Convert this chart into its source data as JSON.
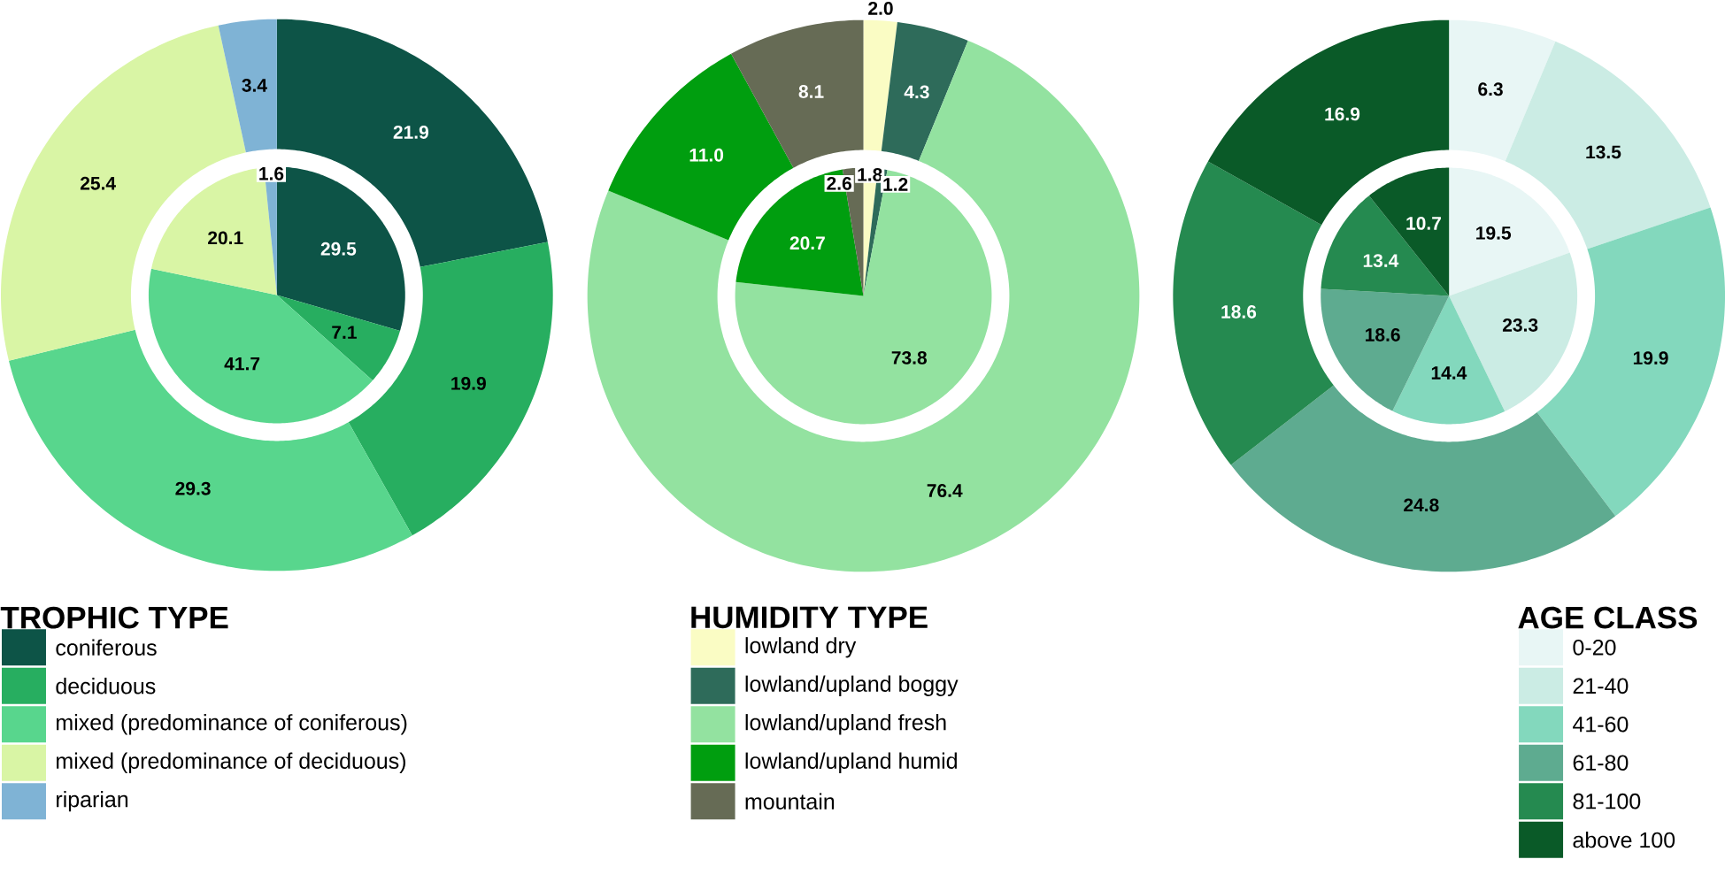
{
  "chart_data": [
    {
      "type": "donut",
      "title": "TROPHIC TYPE",
      "categories": [
        "coniferous",
        "deciduous",
        "mixed (predominance of coniferous)",
        "mixed (predominance of deciduous)",
        "riparian"
      ],
      "colors": [
        "#0d5447",
        "#27ae60",
        "#58d68d",
        "#d9f5a5",
        "#7fb3d5"
      ],
      "series": [
        {
          "values": [
            29.5,
            7.1,
            41.7,
            20.1,
            1.6
          ]
        },
        {
          "values": [
            21.9,
            19.9,
            29.3,
            25.4,
            3.4
          ]
        }
      ],
      "data_labels": true,
      "legend": "bottom"
    },
    {
      "type": "donut",
      "title": "HUMIDITY TYPE",
      "categories": [
        "lowland dry",
        "lowland/upland boggy",
        "lowland/upland fresh",
        "lowland/upland humid",
        "mountain"
      ],
      "colors": [
        "#fafcc4",
        "#2e6b5a",
        "#93e2a0",
        "#009e0f",
        "#666b55"
      ],
      "series": [
        {
          "values": [
            1.8,
            1.2,
            73.8,
            20.7,
            2.6
          ],
          "value_labels": [
            "1.8",
            "1.2",
            "73.8",
            "20.7",
            "2.6"
          ]
        },
        {
          "values": [
            2.0,
            4.3,
            76.4,
            11.0,
            8.1
          ],
          "value_labels": [
            "2.0",
            "4.3",
            "76.4",
            "11.0",
            "8.1"
          ]
        }
      ],
      "legend": "bottom"
    },
    {
      "type": "donut",
      "title": "AGE CLASS",
      "categories": [
        "0-20",
        "21-40",
        "41-60",
        "61-80",
        "81-100",
        "above 100"
      ],
      "colors": [
        "#e8f6f5",
        "#cbece4",
        "#83d8bd",
        "#5eab90",
        "#258a50",
        "#0a5a28"
      ],
      "series": [
        {
          "values": [
            19.5,
            23.3,
            14.4,
            18.6,
            13.4,
            10.7
          ]
        },
        {
          "values": [
            6.3,
            13.5,
            19.9,
            24.8,
            18.6,
            16.9
          ]
        }
      ],
      "data_labels": true,
      "legend": "bottom"
    }
  ]
}
